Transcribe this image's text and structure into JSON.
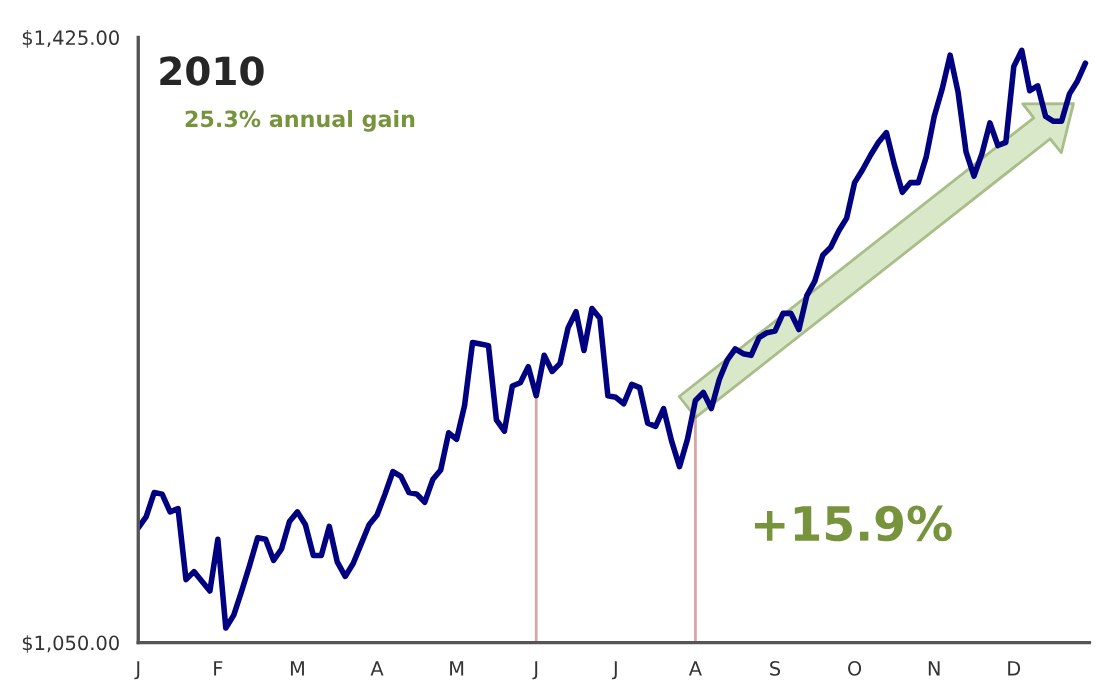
{
  "chart_data": {
    "type": "line",
    "title": "2010",
    "categories": [
      "J",
      null,
      null,
      null,
      null,
      null,
      null,
      null,
      null,
      null,
      "F",
      null,
      null,
      null,
      null,
      null,
      null,
      null,
      null,
      null,
      "M",
      null,
      null,
      null,
      null,
      null,
      null,
      null,
      null,
      null,
      "A",
      null,
      null,
      null,
      null,
      null,
      null,
      null,
      null,
      null,
      "M",
      null,
      null,
      null,
      null,
      null,
      null,
      null,
      null,
      null,
      "J",
      null,
      null,
      null,
      null,
      null,
      null,
      null,
      null,
      null,
      "J",
      null,
      null,
      null,
      null,
      null,
      null,
      null,
      null,
      null,
      "A",
      null,
      null,
      null,
      null,
      null,
      null,
      null,
      null,
      null,
      "S",
      null,
      null,
      null,
      null,
      null,
      null,
      null,
      null,
      null,
      "O",
      null,
      null,
      null,
      null,
      null,
      null,
      null,
      null,
      null,
      "N",
      null,
      null,
      null,
      null,
      null,
      null,
      null,
      null,
      null,
      "D",
      null,
      null,
      null,
      null,
      null,
      null,
      null,
      null,
      null
    ],
    "series": [
      {
        "color": "#000080",
        "values": [
          1121,
          1128,
          1143,
          1142,
          1131,
          1133,
          1089,
          1094,
          1088,
          1082,
          1114,
          1059,
          1067,
          1082,
          1098,
          1115,
          1114,
          1101,
          1108,
          1125,
          1131,
          1123,
          1104,
          1104,
          1122,
          1100,
          1091,
          1099,
          1111,
          1123,
          1129,
          1142,
          1156,
          1153,
          1143,
          1142,
          1137,
          1151,
          1157,
          1180,
          1176,
          1197,
          1236,
          1235,
          1234,
          1188,
          1181,
          1209,
          1211,
          1221,
          1203,
          1228,
          1218,
          1223,
          1245,
          1255,
          1231,
          1257,
          1251,
          1203,
          1202,
          1198,
          1210,
          1208,
          1186,
          1184,
          1195,
          1175,
          1159,
          1176,
          1200,
          1205,
          1195,
          1213,
          1225,
          1232,
          1229,
          1228,
          1239,
          1242,
          1243,
          1254,
          1254,
          1244,
          1265,
          1274,
          1290,
          1295,
          1305,
          1313,
          1335,
          1343,
          1352,
          1360,
          1366,
          1346,
          1329,
          1335,
          1335,
          1351,
          1376,
          1393,
          1414,
          1391,
          1354,
          1339,
          1353,
          1372,
          1358,
          1360,
          1407,
          1417,
          1392,
          1395,
          1376,
          1373,
          1373,
          1390,
          1398,
          1409
        ]
      }
    ],
    "ylim": [
      1050,
      1425
    ],
    "yticks": [
      {
        "value": 1050,
        "label": "$1,050.00"
      },
      {
        "value": 1425,
        "label": "$1,425.00"
      }
    ],
    "annotations": [
      "25.3% annual gain",
      "+15.9%"
    ],
    "grid": false,
    "line_style": "solid",
    "marker": "none"
  }
}
